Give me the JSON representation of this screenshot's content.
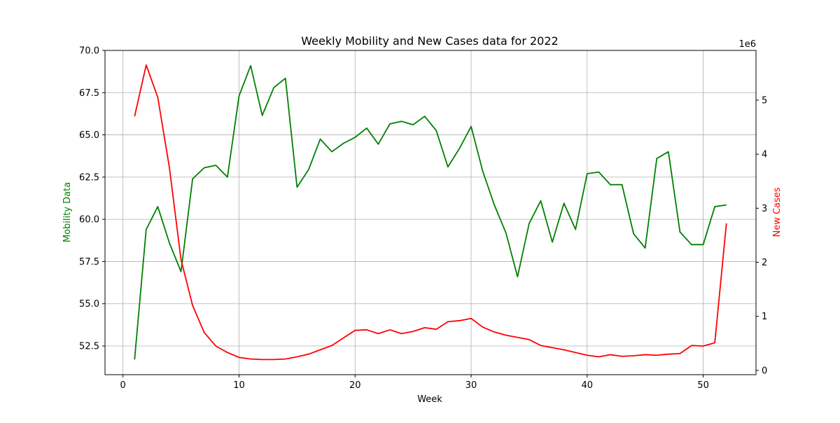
{
  "chart_data": {
    "type": "line",
    "title": "Weekly Mobility and New Cases data for 2022",
    "xlabel": "Week",
    "ylabel": "Mobility Data",
    "y2label": "New Cases",
    "y2_offset_text": "1e6",
    "xlim": [
      -1.55,
      54.55
    ],
    "ylim": [
      50.8,
      70.0
    ],
    "y2lim": [
      -0.08,
      5.92
    ],
    "x_ticks": [
      0,
      10,
      20,
      30,
      40,
      50
    ],
    "y_ticks": [
      52.5,
      55.0,
      57.5,
      60.0,
      62.5,
      65.0,
      67.5,
      70.0
    ],
    "y2_ticks": [
      0,
      1,
      2,
      3,
      4,
      5
    ],
    "grid": true,
    "x": [
      1,
      2,
      3,
      4,
      5,
      6,
      7,
      8,
      9,
      10,
      11,
      12,
      13,
      14,
      15,
      16,
      17,
      18,
      19,
      20,
      21,
      22,
      23,
      24,
      25,
      26,
      27,
      28,
      29,
      30,
      31,
      32,
      33,
      34,
      35,
      36,
      37,
      38,
      39,
      40,
      41,
      42,
      43,
      44,
      45,
      46,
      47,
      48,
      49,
      50,
      51,
      52
    ],
    "series": [
      {
        "name": "Mobility Data",
        "axis": "left",
        "color": "#008000",
        "values": [
          51.7,
          59.4,
          60.75,
          58.6,
          56.9,
          62.4,
          63.05,
          63.2,
          62.5,
          67.3,
          69.1,
          66.15,
          67.8,
          68.35,
          61.9,
          62.95,
          64.75,
          64.0,
          64.5,
          64.85,
          65.4,
          64.45,
          65.65,
          65.8,
          65.6,
          66.1,
          65.25,
          63.1,
          64.2,
          65.5,
          62.85,
          60.85,
          59.2,
          56.6,
          59.75,
          61.1,
          58.65,
          60.95,
          59.4,
          62.7,
          62.8,
          62.05,
          62.05,
          59.15,
          58.3,
          63.6,
          64.0,
          59.25,
          58.5,
          58.5,
          60.75,
          60.85
        ]
      },
      {
        "name": "New Cases",
        "axis": "right",
        "color": "#ff0000",
        "values": [
          4.7,
          5.65,
          5.05,
          3.75,
          2.05,
          1.2,
          0.7,
          0.45,
          0.33,
          0.24,
          0.21,
          0.2,
          0.2,
          0.21,
          0.25,
          0.3,
          0.38,
          0.46,
          0.6,
          0.74,
          0.75,
          0.68,
          0.75,
          0.68,
          0.72,
          0.79,
          0.76,
          0.9,
          0.92,
          0.96,
          0.8,
          0.71,
          0.65,
          0.61,
          0.57,
          0.46,
          0.42,
          0.38,
          0.33,
          0.28,
          0.25,
          0.29,
          0.26,
          0.27,
          0.29,
          0.28,
          0.3,
          0.31,
          0.46,
          0.45,
          0.51,
          2.72
        ]
      }
    ]
  }
}
